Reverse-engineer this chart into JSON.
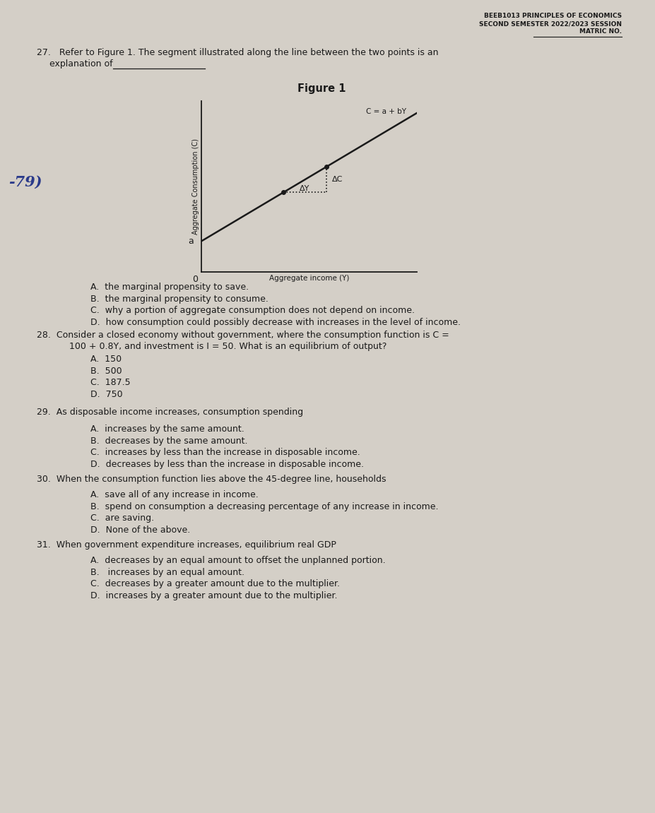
{
  "bg_color": "#d4cfc7",
  "text_color": "#1a1a1a",
  "header_line1": "BEEB1013 PRINCIPLES OF ECONOMICS",
  "header_line2": "SECOND SEMESTER 2022/2023 SESSION",
  "header_line3": "MATRIC NO.",
  "figure_title": "Figure 1",
  "fig_ylabel": "Aggregate Consumption (C)",
  "fig_xlabel": "Aggregate income (Y)",
  "fig_line_label": "C = a + bY",
  "fig_a_label": "a",
  "fig_0_label": "0",
  "fig_delta_C": "ΔC",
  "fig_delta_Y": "ΔY",
  "handwritten": "-79)",
  "q27_line1": "27.   Refer to Figure 1. The segment illustrated along the line between the two points is an",
  "q27_line2": "       explanation of ___________",
  "q27_opts": [
    "A.  the marginal propensity to save.",
    "B.  the marginal propensity to consume.",
    "C.  why a portion of aggregate consumption does not depend on income.",
    "D.  how consumption could possibly decrease with increases in the level of income."
  ],
  "q28_line1": "28.  Consider a closed economy without government, where the consumption function is C =",
  "q28_line2": "       100 + 0.8Y, and investment is I = 50. What is an equilibrium of output?",
  "q28_opts": [
    "A.  150",
    "B.  500",
    "C.  187.5",
    "D.  750"
  ],
  "q29_line1": "29.  As disposable income increases, consumption spending",
  "q29_opts": [
    "A.  increases by the same amount.",
    "B.  decreases by the same amount.",
    "C.  increases by less than the increase in disposable income.",
    "D.  decreases by less than the increase in disposable income."
  ],
  "q30_line1": "30.  When the consumption function lies above the 45-degree line, households",
  "q30_opts": [
    "A.  save all of any increase in income.",
    "B.  spend on consumption a decreasing percentage of any increase in income.",
    "C.  are saving.",
    "D.  None of the above."
  ],
  "q31_line1": "31.  When government expenditure increases, equilibrium real GDP",
  "q31_opts": [
    "A.  decreases by an equal amount to offset the unplanned portion.",
    "B.   increases by an equal amount.",
    "C.  decreases by a greater amount due to the multiplier.",
    "D.  increases by a greater amount due to the multiplier."
  ]
}
